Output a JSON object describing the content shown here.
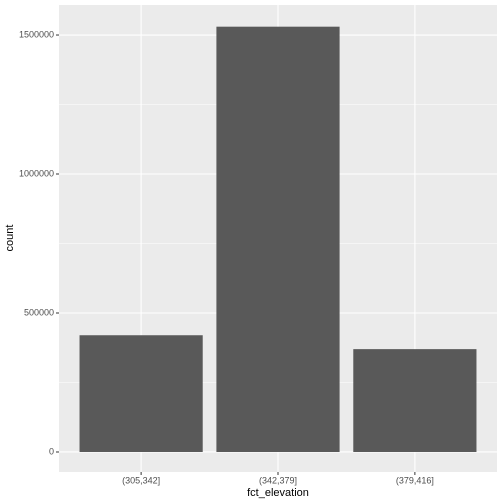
{
  "chart_data": {
    "type": "bar",
    "x_label": "fct_elevation",
    "y_label": "count",
    "categories": [
      "(305,342]",
      "(342,379]",
      "(379,416]"
    ],
    "values": [
      420000,
      1530000,
      370000
    ],
    "color": "#595959",
    "ylim": [
      -72000,
      1608000
    ],
    "yticks": [
      0,
      500000,
      1000000,
      1500000
    ],
    "grid": true
  }
}
